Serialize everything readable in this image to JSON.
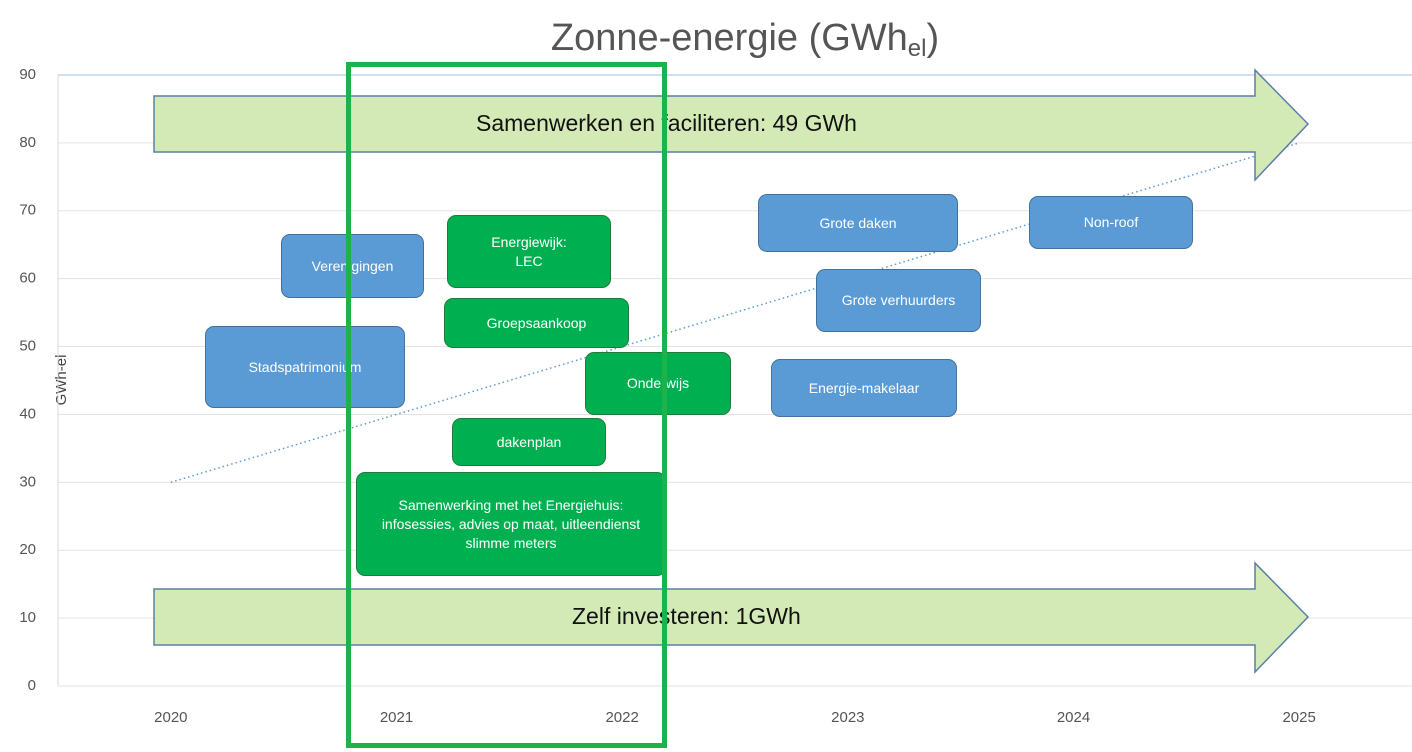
{
  "chart_data": {
    "type": "line",
    "title": [
      "Zonne-energie (GWh",
      "el",
      ")"
    ],
    "y_label": "GWh-el",
    "xlim": [
      2019.5,
      2025.5
    ],
    "xticks": [
      2020,
      2021,
      2022,
      2023,
      2024,
      2025
    ],
    "ylim": [
      0,
      90
    ],
    "yticks": [
      0,
      10,
      20,
      30,
      40,
      50,
      60,
      70,
      80,
      90
    ],
    "grid": true,
    "x": [
      2020,
      2025
    ],
    "series": [
      {
        "color": "#5b9bd5",
        "values": [
          30,
          80
        ]
      }
    ],
    "arrows": [
      "Samenwerken en faciliteren: 49 GWh",
      "Zelf investeren: 1GWh"
    ],
    "annotations": [
      {
        "text": "Verenigingen",
        "color": "#5b9bd5"
      },
      {
        "text": "Stadspatrimonium",
        "color": "#5b9bd5"
      },
      {
        "text": "Energiewijk: LEC",
        "color": "#00b050"
      },
      {
        "text": "Groepsaankoop",
        "color": "#00b050"
      },
      {
        "text": "Onderwijs",
        "color": "#00b050"
      },
      {
        "text": "dakenplan",
        "color": "#00b050"
      },
      {
        "text": "Samenwerking met het Energiehuis: infosessies, advies op maat, uitleendienst slimme meters",
        "color": "#00b050"
      },
      {
        "text": "Grote daken",
        "color": "#5b9bd5"
      },
      {
        "text": "Non-roof",
        "color": "#5b9bd5"
      },
      {
        "text": "Grote verhuurders",
        "color": "#5b9bd5"
      },
      {
        "text": "Energie-makelaar",
        "color": "#5b9bd5"
      }
    ]
  }
}
